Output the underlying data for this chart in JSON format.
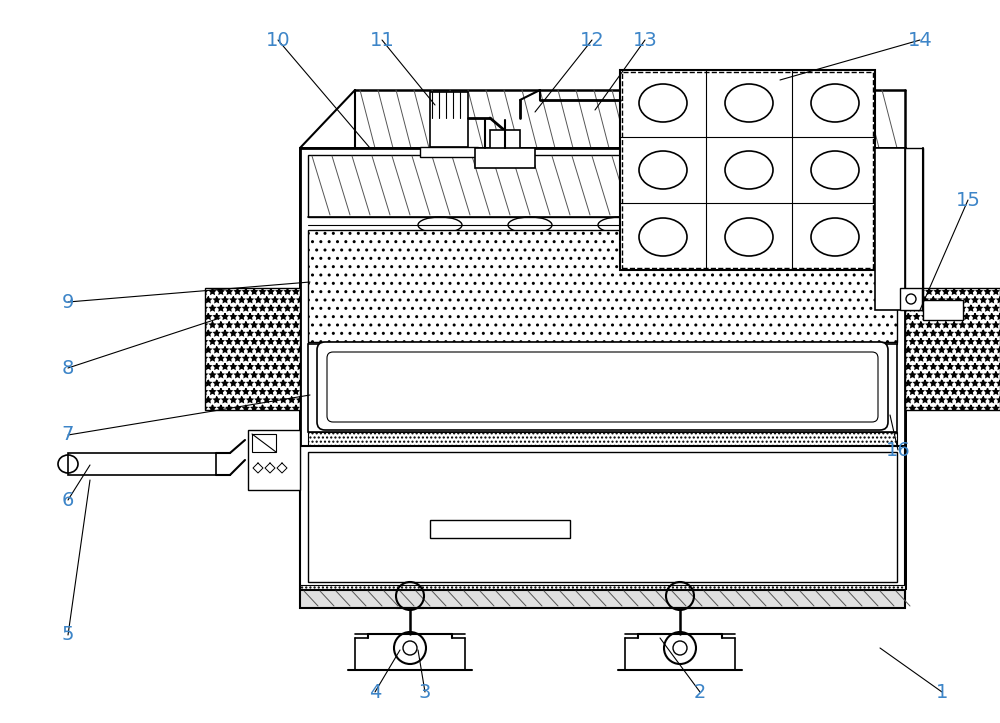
{
  "label_color": "#3d85c8",
  "bg_color": "#ffffff",
  "leaders": [
    [
      "1",
      942,
      692,
      880,
      648
    ],
    [
      "2",
      700,
      692,
      660,
      638
    ],
    [
      "3",
      425,
      692,
      418,
      650
    ],
    [
      "4",
      375,
      692,
      400,
      650
    ],
    [
      "5",
      68,
      635,
      90,
      480
    ],
    [
      "6",
      68,
      500,
      90,
      465
    ],
    [
      "7",
      68,
      435,
      310,
      395
    ],
    [
      "8",
      68,
      368,
      220,
      318
    ],
    [
      "9",
      68,
      302,
      310,
      282
    ],
    [
      "10",
      278,
      40,
      370,
      148
    ],
    [
      "11",
      382,
      40,
      435,
      105
    ],
    [
      "12",
      592,
      40,
      535,
      112
    ],
    [
      "13",
      645,
      40,
      595,
      110
    ],
    [
      "14",
      920,
      40,
      780,
      80
    ],
    [
      "15",
      968,
      200,
      920,
      310
    ],
    [
      "16",
      898,
      450,
      890,
      415
    ]
  ]
}
